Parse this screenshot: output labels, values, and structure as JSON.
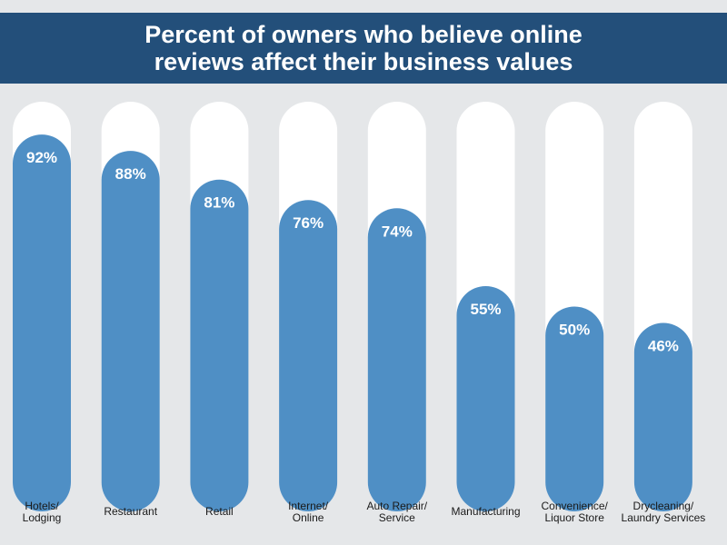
{
  "chart_data": {
    "type": "bar",
    "title_lines": [
      "Percent of owners who believe online",
      "reviews affect their business values"
    ],
    "categories": [
      [
        "Hotels/",
        "Lodging"
      ],
      [
        "Restaurant"
      ],
      [
        "Retail"
      ],
      [
        "Internet/",
        "Online"
      ],
      [
        "Auto Repair/",
        "Service"
      ],
      [
        "Manufacturing"
      ],
      [
        "Convenience/",
        "Liquor Store"
      ],
      [
        "Drycleaning/",
        "Laundry Services"
      ]
    ],
    "values": [
      92,
      88,
      81,
      76,
      74,
      55,
      50,
      46
    ],
    "value_labels": [
      "92%",
      "88%",
      "81%",
      "76%",
      "74%",
      "55%",
      "50%",
      "46%"
    ],
    "ylim": [
      0,
      100
    ],
    "colors": {
      "bar": "#4f8fc5",
      "track": "#ffffff",
      "header": "#234f7a",
      "background": "#e5e7e9"
    }
  }
}
